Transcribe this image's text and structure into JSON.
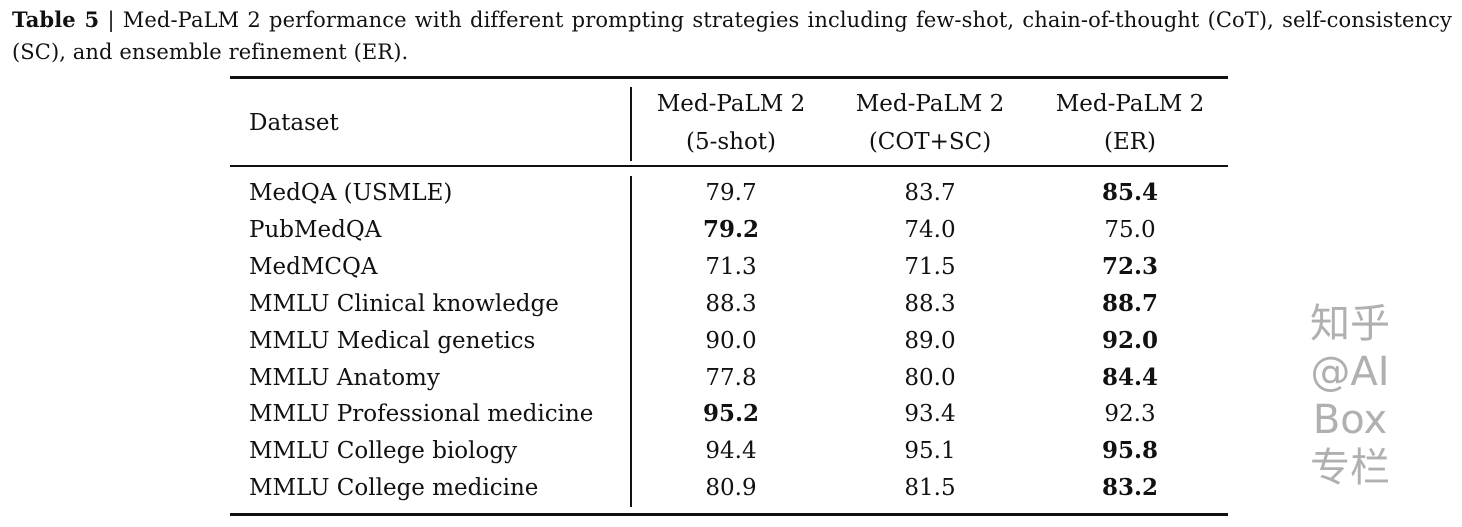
{
  "caption": {
    "label": "Table 5",
    "separator": "|",
    "text": "Med-PaLM 2 performance with different prompting strategies including few-shot, chain-of-thought (CoT), self-consistency (SC), and ensemble refinement (ER)."
  },
  "table": {
    "headers": [
      {
        "line1": "Dataset",
        "line2": ""
      },
      {
        "line1": "Med-PaLM 2",
        "line2": "(5-shot)"
      },
      {
        "line1": "Med-PaLM 2",
        "line2": "(COT+SC)"
      },
      {
        "line1": "Med-PaLM 2",
        "line2": "(ER)"
      }
    ],
    "rows": [
      {
        "dataset": "MedQA (USMLE)",
        "values": [
          "79.7",
          "83.7",
          "85.4"
        ],
        "bold": [
          false,
          false,
          true
        ]
      },
      {
        "dataset": "PubMedQA",
        "values": [
          "79.2",
          "74.0",
          "75.0"
        ],
        "bold": [
          true,
          false,
          false
        ]
      },
      {
        "dataset": "MedMCQA",
        "values": [
          "71.3",
          "71.5",
          "72.3"
        ],
        "bold": [
          false,
          false,
          true
        ]
      },
      {
        "dataset": "MMLU Clinical knowledge",
        "values": [
          "88.3",
          "88.3",
          "88.7"
        ],
        "bold": [
          false,
          false,
          true
        ]
      },
      {
        "dataset": "MMLU Medical genetics",
        "values": [
          "90.0",
          "89.0",
          "92.0"
        ],
        "bold": [
          false,
          false,
          true
        ]
      },
      {
        "dataset": "MMLU Anatomy",
        "values": [
          "77.8",
          "80.0",
          "84.4"
        ],
        "bold": [
          false,
          false,
          true
        ]
      },
      {
        "dataset": "MMLU Professional medicine",
        "values": [
          "95.2",
          "93.4",
          "92.3"
        ],
        "bold": [
          true,
          false,
          false
        ]
      },
      {
        "dataset": "MMLU College biology",
        "values": [
          "94.4",
          "95.1",
          "95.8"
        ],
        "bold": [
          false,
          false,
          true
        ]
      },
      {
        "dataset": "MMLU College medicine",
        "values": [
          "80.9",
          "81.5",
          "83.2"
        ],
        "bold": [
          false,
          false,
          true
        ]
      }
    ]
  },
  "watermark": "知乎 @AI Box专栏"
}
